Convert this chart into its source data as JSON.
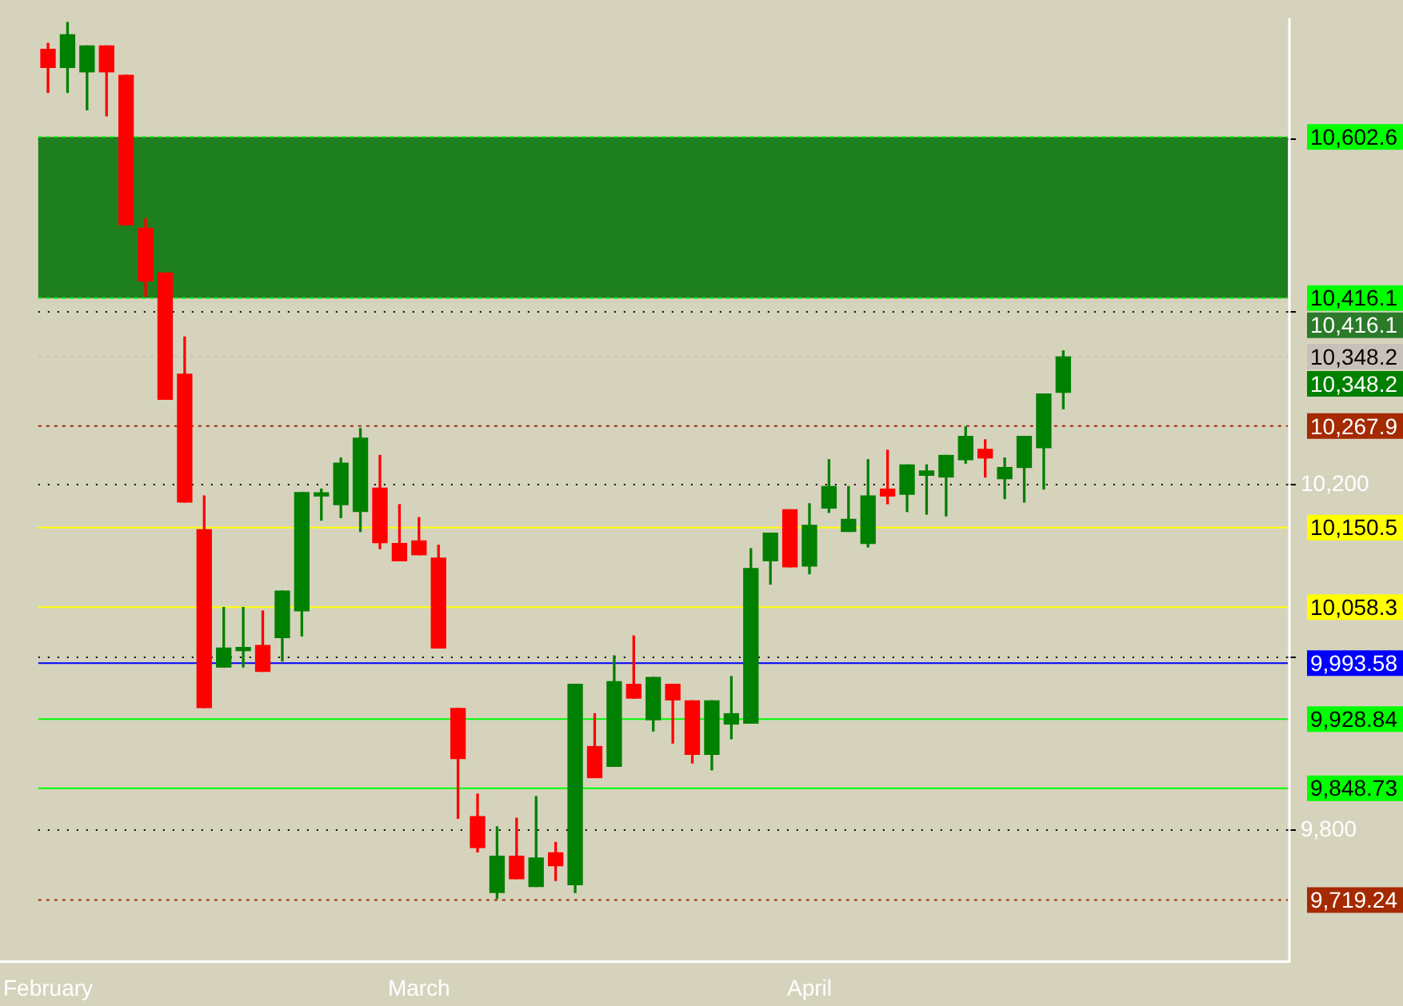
{
  "chart_data": {
    "type": "candlestick",
    "categories": [
      "February",
      null,
      null,
      null,
      null,
      null,
      null,
      null,
      null,
      null,
      null,
      null,
      null,
      null,
      null,
      null,
      null,
      null,
      null,
      "March",
      null,
      null,
      null,
      null,
      null,
      null,
      null,
      null,
      null,
      null,
      null,
      null,
      null,
      null,
      null,
      null,
      null,
      null,
      null,
      "April",
      null,
      null,
      null,
      null,
      null,
      null,
      null,
      null,
      null,
      null,
      null,
      null,
      null,
      null,
      null,
      null,
      null,
      null,
      null,
      null,
      null,
      null,
      null,
      null
    ],
    "ohlc": [
      [
        10704,
        10711,
        10654,
        10683
      ],
      [
        10683,
        10735,
        10654,
        10721
      ],
      [
        10678,
        10708,
        10634,
        10708
      ],
      [
        10708,
        10708,
        10627,
        10678
      ],
      [
        10674,
        10674,
        10501,
        10501
      ],
      [
        10497,
        10508,
        10418,
        10436
      ],
      [
        10445,
        10445,
        10299,
        10299
      ],
      [
        10328,
        10371,
        10180,
        10180
      ],
      [
        10148,
        10187,
        9942,
        9942
      ],
      [
        9989,
        10058,
        9989,
        10011
      ],
      [
        10008,
        10058,
        9989,
        10010
      ],
      [
        10014,
        10054,
        9984,
        9984
      ],
      [
        10023,
        10077,
        9996,
        10077
      ],
      [
        10054,
        10191,
        10025,
        10191
      ],
      [
        10187,
        10195,
        10159,
        10189
      ],
      [
        10177,
        10231,
        10162,
        10225
      ],
      [
        10169,
        10265,
        10146,
        10254
      ],
      [
        10196,
        10234,
        10126,
        10133
      ],
      [
        10132,
        10177,
        10112,
        10112
      ],
      [
        10135,
        10162,
        10119,
        10119
      ],
      [
        10115,
        10130,
        10011,
        10011
      ],
      [
        9941,
        9941,
        9814,
        9883
      ],
      [
        9816,
        9842,
        9775,
        9780
      ],
      [
        9728,
        9804,
        9721,
        9770
      ],
      [
        9770,
        9814,
        9744,
        9744
      ],
      [
        9735,
        9839,
        9735,
        9768
      ],
      [
        9774,
        9786,
        9742,
        9759
      ],
      [
        9737,
        9969,
        9728,
        9969
      ],
      [
        9897,
        9935,
        9861,
        9861
      ],
      [
        9874,
        10002,
        9874,
        9972
      ],
      [
        9969,
        10025,
        9953,
        9953
      ],
      [
        9928,
        9977,
        9915,
        9977
      ],
      [
        9969,
        9969,
        9901,
        9951
      ],
      [
        9950,
        9950,
        9878,
        9888
      ],
      [
        9888,
        9950,
        9870,
        9950
      ],
      [
        9923,
        9978,
        9906,
        9935
      ],
      [
        9924,
        10126,
        9924,
        10103
      ],
      [
        10112,
        10144,
        10085,
        10144
      ],
      [
        10171,
        10171,
        10105,
        10105
      ],
      [
        10106,
        10178,
        10097,
        10153
      ],
      [
        10173,
        10229,
        10168,
        10198
      ],
      [
        10146,
        10198,
        10146,
        10160
      ],
      [
        10132,
        10229,
        10128,
        10187
      ],
      [
        10195,
        10240,
        10178,
        10187
      ],
      [
        10189,
        10223,
        10169,
        10223
      ],
      [
        10211,
        10223,
        10166,
        10216
      ],
      [
        10209,
        10234,
        10164,
        10234
      ],
      [
        10229,
        10267,
        10225,
        10256
      ],
      [
        10241,
        10252,
        10209,
        10231
      ],
      [
        10207,
        10231,
        10184,
        10220
      ],
      [
        10220,
        10256,
        10180,
        10256
      ],
      [
        10243,
        10305,
        10195,
        10305
      ],
      [
        10307,
        10355,
        10288,
        10348
      ],
      null,
      null,
      null,
      null,
      null,
      null,
      null,
      null,
      null,
      null,
      null
    ],
    "colors": [
      "#ff0000",
      "#008000",
      "#008000",
      "#ff0000",
      "#ff0000",
      "#ff0000",
      "#ff0000",
      "#ff0000",
      "#ff0000",
      "#008000",
      "#008000",
      "#ff0000",
      "#008000",
      "#008000",
      "#008000",
      "#008000",
      "#008000",
      "#ff0000",
      "#ff0000",
      "#ff0000",
      "#ff0000",
      "#ff0000",
      "#ff0000",
      "#008000",
      "#ff0000",
      "#008000",
      "#ff0000",
      "#008000",
      "#ff0000",
      "#008000",
      "#ff0000",
      "#008000",
      "#ff0000",
      "#ff0000",
      "#008000",
      "#008000",
      "#008000",
      "#008000",
      "#ff0000",
      "#008000",
      "#008000",
      "#008000",
      "#008000",
      "#ff0000",
      "#008000",
      "#008000",
      "#008000",
      "#008000",
      "#ff0000",
      "#008000",
      "#008000",
      "#008000",
      "#008000",
      null,
      null,
      null,
      null,
      null,
      null,
      null,
      null,
      null,
      null,
      null
    ],
    "annotations": [
      "10,416.1",
      "10,348.2"
    ],
    "ylim": [
      9650,
      10740
    ],
    "yticks": [
      {
        "value": 9800,
        "label": "9,800"
      },
      {
        "value": 10000,
        "label": null
      },
      {
        "value": 10200,
        "label": "10,200"
      },
      {
        "value": 10400,
        "label": null
      },
      {
        "value": 10600,
        "label": null
      }
    ],
    "grid": "y",
    "bands": [
      {
        "axis": "y",
        "from": 10416.1,
        "to": 10602.6,
        "color": "#1e7f1e"
      }
    ],
    "ref_lines": [
      {
        "axis": "y",
        "value": 10602.6,
        "label": "10,602.6",
        "color": "#00ff00",
        "line_style": "dotted"
      },
      {
        "axis": "y",
        "value": 10416.1,
        "label": "10,416.1",
        "color": "#00ff00",
        "line_style": "dotted"
      },
      {
        "axis": "y",
        "value": 10348.2,
        "label": "10,348.2",
        "color": "#c8c0b8",
        "line_style": "dotted"
      },
      {
        "axis": "y",
        "value": 10267.9,
        "label": "10,267.9",
        "color": "#a52a00",
        "line_style": "dotted"
      },
      {
        "axis": "y",
        "value": 10150.5,
        "label": "10,150.5",
        "color": "#ffff00",
        "line_style": "solid"
      },
      {
        "axis": "y",
        "value": 10058.3,
        "label": "10,058.3",
        "color": "#ffff00",
        "line_style": "solid"
      },
      {
        "axis": "y",
        "value": 9993.58,
        "label": "9,993.58",
        "color": "#0000ff",
        "line_style": "solid"
      },
      {
        "axis": "y",
        "value": 9928.84,
        "label": "9,928.84",
        "color": "#00ff00",
        "line_style": "solid"
      },
      {
        "axis": "y",
        "value": 9848.73,
        "label": "9,848.73",
        "color": "#00ff00",
        "line_style": "solid"
      },
      {
        "axis": "y",
        "value": 9719.24,
        "label": "9,719.24",
        "color": "#a52a00",
        "line_style": "dotted"
      }
    ],
    "legend": false
  }
}
